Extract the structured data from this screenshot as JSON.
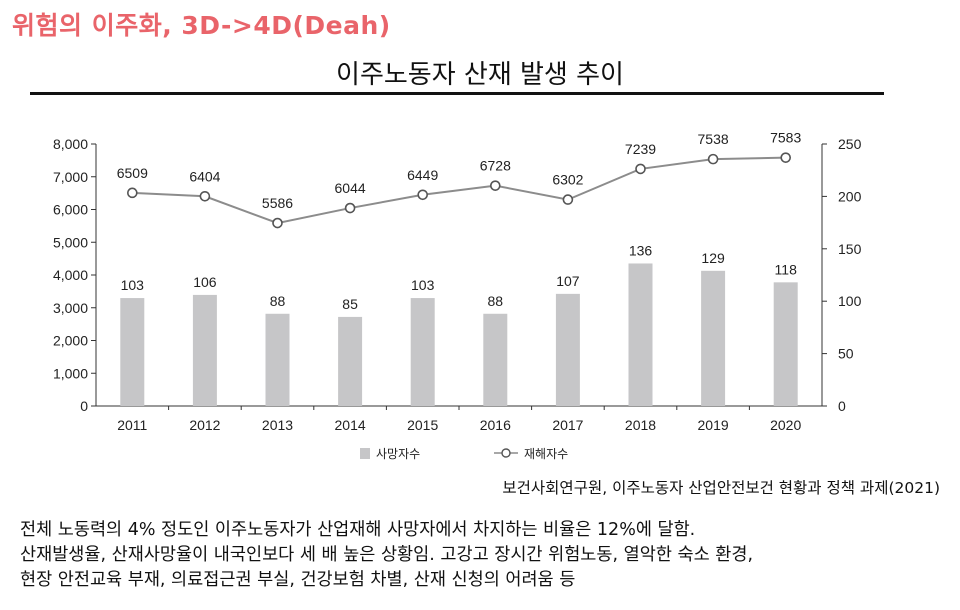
{
  "headline": "위험의 이주화, 3D->4D(Deah)",
  "source": "보건사회연구원, 이주노동자 산업안전보건 현황과 정책 과제(2021)",
  "summary": [
    "전체 노동력의 4% 정도인 이주노동자가 산업재해 사망자에서 차지하는 비율은 12%에 달함.",
    "산재발생율, 산재사망율이 내국인보다 세 배 높은 상황임. 고강고 장시간 위험노동, 열악한 숙소 환경,",
    "현장 안전교육 부재, 의료접근권 부실, 건강보험 차별, 산재 신청의 어려움 등"
  ],
  "colors": {
    "headline": "#e9646a",
    "bar": "#c6c6c8",
    "line": "#8c8c8c",
    "axis": "#333333"
  },
  "chart_data": {
    "type": "bar+line",
    "title": "이주노동자 산재 발생 추이",
    "categories": [
      "2011",
      "2012",
      "2013",
      "2014",
      "2015",
      "2016",
      "2017",
      "2018",
      "2019",
      "2020"
    ],
    "series": [
      {
        "name": "사망자수",
        "kind": "bar",
        "axis": "right",
        "values": [
          103,
          106,
          88,
          85,
          103,
          88,
          107,
          136,
          129,
          118
        ]
      },
      {
        "name": "재해자수",
        "kind": "line",
        "axis": "left",
        "values": [
          6509,
          6404,
          5586,
          6044,
          6449,
          6728,
          6302,
          7239,
          7538,
          7583
        ]
      }
    ],
    "left_axis": {
      "min": 0,
      "max": 8000,
      "ticks": [
        0,
        1000,
        2000,
        3000,
        4000,
        5000,
        6000,
        7000,
        8000
      ],
      "tick_labels": [
        "0",
        "1,000",
        "2,000",
        "3,000",
        "4,000",
        "5,000",
        "6,000",
        "7,000",
        "8,000"
      ]
    },
    "right_axis": {
      "min": 0,
      "max": 250,
      "ticks": [
        0,
        50,
        100,
        150,
        200,
        250
      ],
      "tick_labels": [
        "0",
        "50",
        "100",
        "150",
        "200",
        "250"
      ]
    },
    "legend": [
      "사망자수",
      "재해자수"
    ],
    "legend_position": "bottom-center"
  }
}
